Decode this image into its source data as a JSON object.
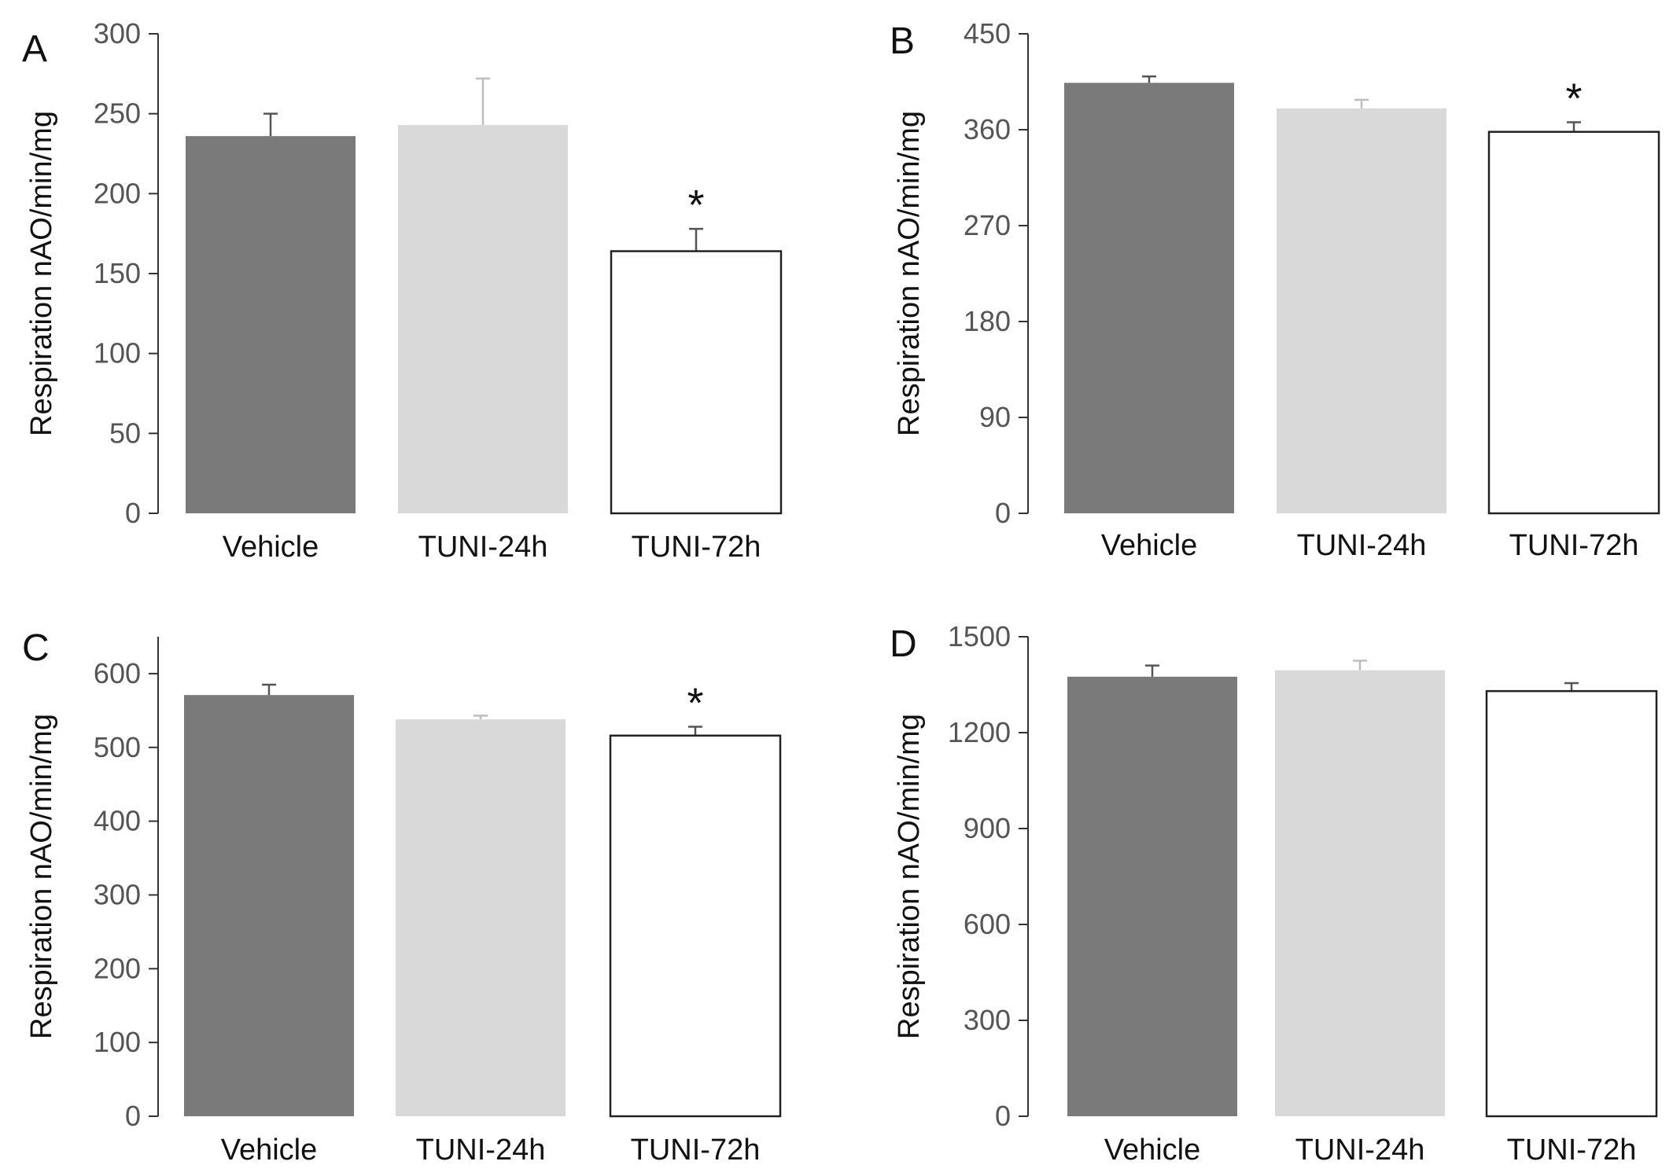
{
  "chart_data": [
    {
      "type": "bar",
      "panel": "A",
      "categories": [
        "Vehicle",
        "TUNI-24h",
        "TUNI-72h"
      ],
      "values": [
        236,
        243,
        164
      ],
      "errors": [
        14,
        29,
        14
      ],
      "significance": [
        "",
        "",
        "*"
      ],
      "ylabel": "Respiration nAO/min/mg",
      "xlabel": "",
      "ylim": [
        0,
        300
      ],
      "yticks": [
        0,
        50,
        100,
        150,
        200,
        250,
        300
      ],
      "colors": [
        "#7a7a7a",
        "#d9d9d9",
        "#ffffff"
      ]
    },
    {
      "type": "bar",
      "panel": "B",
      "categories": [
        "Vehicle",
        "TUNI-24h",
        "TUNI-72h"
      ],
      "values": [
        404,
        380,
        358
      ],
      "errors": [
        6,
        8,
        9
      ],
      "significance": [
        "",
        "",
        "*"
      ],
      "ylabel": "Respiration nAO/min/mg",
      "xlabel": "",
      "ylim": [
        0,
        450
      ],
      "yticks": [
        0,
        90,
        180,
        270,
        360,
        450
      ],
      "colors": [
        "#7a7a7a",
        "#d9d9d9",
        "#ffffff"
      ]
    },
    {
      "type": "bar",
      "panel": "C",
      "categories": [
        "Vehicle",
        "TUNI-24h",
        "TUNI-72h"
      ],
      "values": [
        571,
        538,
        516
      ],
      "errors": [
        14,
        5,
        12
      ],
      "significance": [
        "",
        "",
        "*"
      ],
      "ylabel": "Respiration nAO/min/mg",
      "xlabel": "",
      "ylim": [
        0,
        650
      ],
      "yticks": [
        0,
        100,
        200,
        300,
        400,
        500,
        600
      ],
      "colors": [
        "#7a7a7a",
        "#d9d9d9",
        "#ffffff"
      ]
    },
    {
      "type": "bar",
      "panel": "D",
      "categories": [
        "Vehicle",
        "TUNI-24h",
        "TUNI-72h"
      ],
      "values": [
        1375,
        1395,
        1330
      ],
      "errors": [
        35,
        30,
        25
      ],
      "significance": [
        "",
        "",
        ""
      ],
      "ylabel": "Respiration nAO/min/mg",
      "xlabel": "",
      "ylim": [
        0,
        1500
      ],
      "yticks": [
        0,
        300,
        600,
        900,
        1200,
        1500
      ],
      "colors": [
        "#7a7a7a",
        "#d9d9d9",
        "#ffffff"
      ]
    }
  ]
}
